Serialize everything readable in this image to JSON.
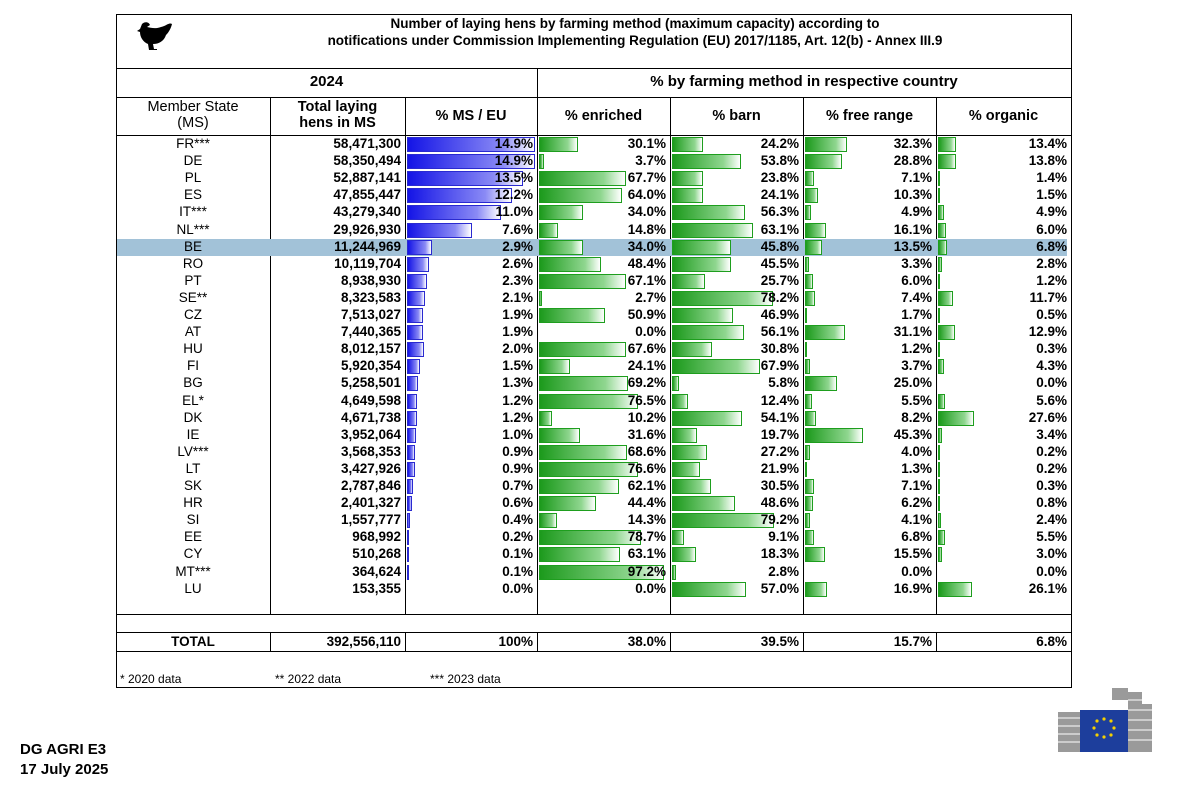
{
  "header": {
    "title_line1": "Number of laying hens by farming method (maximum capacity) according to",
    "title_line2": "notifications under Commission Implementing Regulation (EU) 2017/1185, Art. 12(b) - Annex III.9"
  },
  "table": {
    "group_headers": [
      "2024",
      "% by farming method in respective country"
    ],
    "columns": [
      "Member State\n(MS)",
      "Total laying\nhens in MS",
      "% MS / EU",
      "% enriched",
      "% barn",
      "% free range",
      "% organic"
    ],
    "rows": [
      [
        "FR***",
        "58,471,300",
        "14.9%",
        "30.1%",
        "24.2%",
        "32.3%",
        "13.4%"
      ],
      [
        "DE",
        "58,350,494",
        "14.9%",
        "3.7%",
        "53.8%",
        "28.8%",
        "13.8%"
      ],
      [
        "PL",
        "52,887,141",
        "13.5%",
        "67.7%",
        "23.8%",
        "7.1%",
        "1.4%"
      ],
      [
        "ES",
        "47,855,447",
        "12.2%",
        "64.0%",
        "24.1%",
        "10.3%",
        "1.5%"
      ],
      [
        "IT***",
        "43,279,340",
        "11.0%",
        "34.0%",
        "56.3%",
        "4.9%",
        "4.9%"
      ],
      [
        "NL***",
        "29,926,930",
        "7.6%",
        "14.8%",
        "63.1%",
        "16.1%",
        "6.0%"
      ],
      [
        "BE",
        "11,244,969",
        "2.9%",
        "34.0%",
        "45.8%",
        "13.5%",
        "6.8%"
      ],
      [
        "RO",
        "10,119,704",
        "2.6%",
        "48.4%",
        "45.5%",
        "3.3%",
        "2.8%"
      ],
      [
        "PT",
        "8,938,930",
        "2.3%",
        "67.1%",
        "25.7%",
        "6.0%",
        "1.2%"
      ],
      [
        "SE**",
        "8,323,583",
        "2.1%",
        "2.7%",
        "78.2%",
        "7.4%",
        "11.7%"
      ],
      [
        "CZ",
        "7,513,027",
        "1.9%",
        "50.9%",
        "46.9%",
        "1.7%",
        "0.5%"
      ],
      [
        "AT",
        "7,440,365",
        "1.9%",
        "0.0%",
        "56.1%",
        "31.1%",
        "12.9%"
      ],
      [
        "HU",
        "8,012,157",
        "2.0%",
        "67.6%",
        "30.8%",
        "1.2%",
        "0.3%"
      ],
      [
        "FI",
        "5,920,354",
        "1.5%",
        "24.1%",
        "67.9%",
        "3.7%",
        "4.3%"
      ],
      [
        "BG",
        "5,258,501",
        "1.3%",
        "69.2%",
        "5.8%",
        "25.0%",
        "0.0%"
      ],
      [
        "EL*",
        "4,649,598",
        "1.2%",
        "76.5%",
        "12.4%",
        "5.5%",
        "5.6%"
      ],
      [
        "DK",
        "4,671,738",
        "1.2%",
        "10.2%",
        "54.1%",
        "8.2%",
        "27.6%"
      ],
      [
        "IE",
        "3,952,064",
        "1.0%",
        "31.6%",
        "19.7%",
        "45.3%",
        "3.4%"
      ],
      [
        "LV***",
        "3,568,353",
        "0.9%",
        "68.6%",
        "27.2%",
        "4.0%",
        "0.2%"
      ],
      [
        "LT",
        "3,427,926",
        "0.9%",
        "76.6%",
        "21.9%",
        "1.3%",
        "0.2%"
      ],
      [
        "SK",
        "2,787,846",
        "0.7%",
        "62.1%",
        "30.5%",
        "7.1%",
        "0.3%"
      ],
      [
        "HR",
        "2,401,327",
        "0.6%",
        "44.4%",
        "48.6%",
        "6.2%",
        "0.8%"
      ],
      [
        "SI",
        "1,557,777",
        "0.4%",
        "14.3%",
        "79.2%",
        "4.1%",
        "2.4%"
      ],
      [
        "EE",
        "968,992",
        "0.2%",
        "78.7%",
        "9.1%",
        "6.8%",
        "5.5%"
      ],
      [
        "CY",
        "510,268",
        "0.1%",
        "63.1%",
        "18.3%",
        "15.5%",
        "3.0%"
      ],
      [
        "MT***",
        "364,624",
        "0.1%",
        "97.2%",
        "2.8%",
        "0.0%",
        "0.0%"
      ],
      [
        "LU",
        "153,355",
        "0.0%",
        "0.0%",
        "57.0%",
        "16.9%",
        "26.1%"
      ]
    ],
    "total": [
      "TOTAL",
      "392,556,110",
      "100%",
      "38.0%",
      "39.5%",
      "15.7%",
      "6.8%"
    ]
  },
  "footnotes": [
    "* 2020 data",
    "** 2022 data",
    "*** 2023 data"
  ],
  "footer": {
    "org": "DG AGRI E3",
    "date": "17 July 2025"
  }
}
